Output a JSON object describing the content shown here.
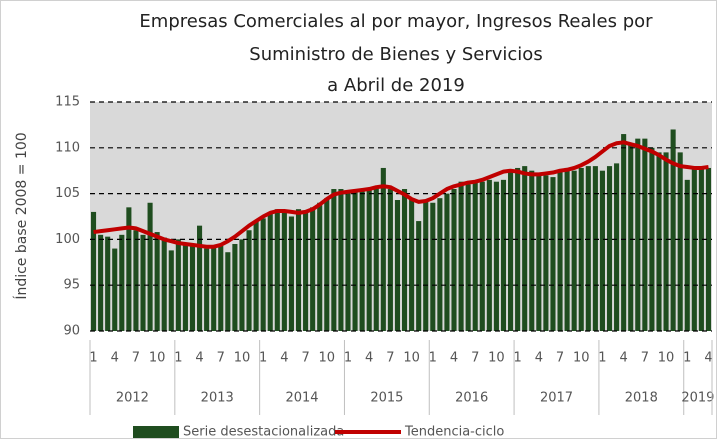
{
  "chart_data": {
    "type": "bar+line",
    "title": [
      "Empresas Comerciales  al por mayor, Ingresos Reales por",
      "Suministro de Bienes y Servicios",
      "a Abril de 2019"
    ],
    "y_label": "Índice base 2008 = 100",
    "categories": [
      "1",
      null,
      null,
      "4",
      null,
      null,
      "7",
      null,
      null,
      "10",
      null,
      null,
      "1",
      null,
      null,
      "4",
      null,
      null,
      "7",
      null,
      null,
      "10",
      null,
      null,
      "1",
      null,
      null,
      "4",
      null,
      null,
      "7",
      null,
      null,
      "10",
      null,
      null,
      "1",
      null,
      null,
      "4",
      null,
      null,
      "7",
      null,
      null,
      "10",
      null,
      null,
      "1",
      null,
      null,
      "4",
      null,
      null,
      "7",
      null,
      null,
      "10",
      null,
      null,
      "1",
      null,
      null,
      "4",
      null,
      null,
      "7",
      null,
      null,
      "10",
      null,
      null,
      "1",
      null,
      null,
      "4",
      null,
      null,
      "7",
      null,
      null,
      "10",
      null,
      null,
      "1",
      null,
      null,
      "4"
    ],
    "years": [
      "2012",
      "2013",
      "2014",
      "2015",
      "2016",
      "2017",
      "2018",
      "2019"
    ],
    "ylim": [
      90,
      115
    ],
    "yticks": [
      90,
      95,
      100,
      105,
      110,
      115
    ],
    "grid": true,
    "series": [
      {
        "name": "Serie desestacionalizada",
        "kind": "bar",
        "color": "#1f4d1f",
        "values": [
          103,
          100.5,
          100.3,
          99,
          100.5,
          103.5,
          101,
          100.5,
          104,
          100.8,
          100.2,
          98.8,
          100,
          99.5,
          99.5,
          101.5,
          99,
          99.2,
          99.3,
          98.6,
          99.5,
          100,
          101,
          102,
          102.3,
          103,
          103.3,
          103,
          102.5,
          103.3,
          103,
          103.5,
          104,
          104.5,
          105.5,
          105.5,
          105.3,
          105.2,
          105.5,
          105.5,
          105.8,
          107.8,
          105.5,
          104.3,
          105.5,
          104.5,
          102,
          104.3,
          104,
          104.5,
          105,
          105.5,
          106.3,
          106,
          106.3,
          106.3,
          106.5,
          106.3,
          106.5,
          107.5,
          107.8,
          108,
          107.5,
          107.3,
          107,
          106.8,
          107.5,
          107.8,
          107.5,
          107.8,
          108,
          108,
          107.5,
          108,
          108.3,
          111.5,
          110.5,
          111,
          111,
          110,
          109.5,
          109.5,
          112,
          109.5,
          106.5,
          108,
          108,
          107.8
        ]
      },
      {
        "name": "Tendencia-ciclo",
        "kind": "line",
        "color": "#c00000",
        "values": [
          100.8,
          100.9,
          101.0,
          101.1,
          101.2,
          101.3,
          101.2,
          100.9,
          100.6,
          100.3,
          100.0,
          99.8,
          99.6,
          99.5,
          99.4,
          99.3,
          99.2,
          99.2,
          99.4,
          99.8,
          100.3,
          100.9,
          101.5,
          102.0,
          102.5,
          102.9,
          103.1,
          103.1,
          103.0,
          102.9,
          103.0,
          103.3,
          103.8,
          104.4,
          104.9,
          105.1,
          105.2,
          105.3,
          105.4,
          105.5,
          105.7,
          105.8,
          105.7,
          105.3,
          104.9,
          104.4,
          104.1,
          104.2,
          104.5,
          105.0,
          105.5,
          105.8,
          106.0,
          106.2,
          106.3,
          106.5,
          106.8,
          107.1,
          107.4,
          107.5,
          107.4,
          107.2,
          107.1,
          107.1,
          107.2,
          107.3,
          107.5,
          107.6,
          107.8,
          108.1,
          108.5,
          109.0,
          109.6,
          110.2,
          110.5,
          110.6,
          110.4,
          110.2,
          109.9,
          109.6,
          109.2,
          108.7,
          108.3,
          108.0,
          107.9,
          107.8,
          107.8,
          107.9
        ]
      }
    ]
  }
}
